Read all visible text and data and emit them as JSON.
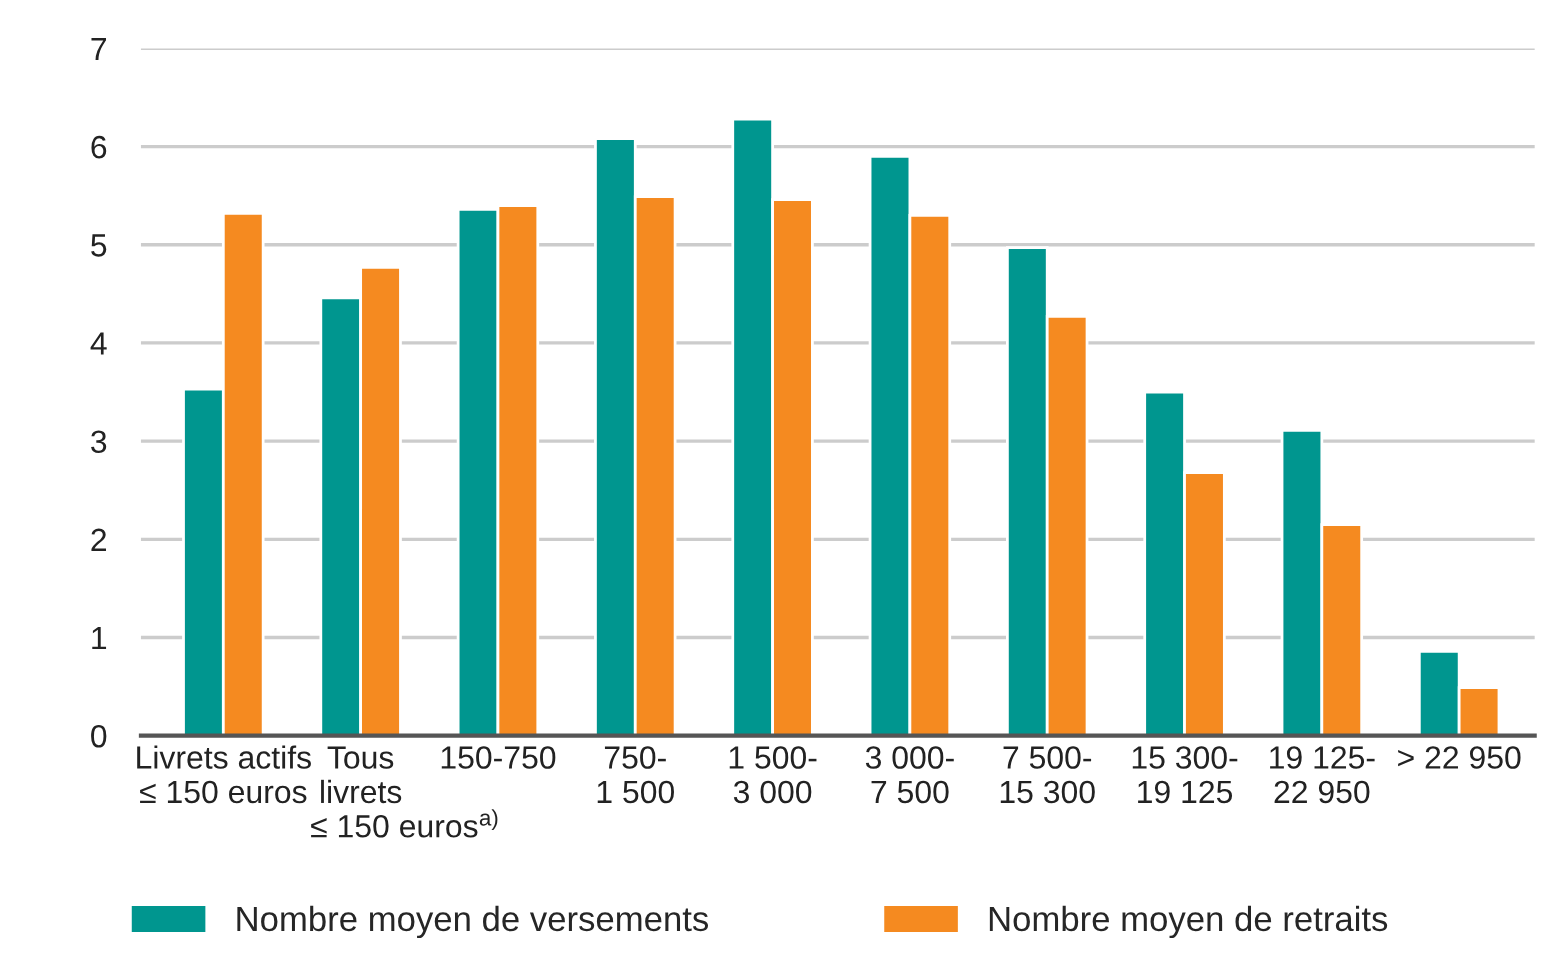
{
  "chart_data": {
    "type": "bar",
    "categories": [
      "Livrets actifs\n≤ 150 euros",
      "Tous\nlivrets\n          ≤ 150 euros$^{a)}$",
      "150-750",
      "750-\n1 500",
      "1 500-\n3 000",
      "3 000-\n7 500",
      "7 500-\n15 300",
      "15 300-\n19 125",
      "19 125-\n22 950",
      "> 22 950"
    ],
    "series": [
      {
        "name": "Nombre moyen de versements",
        "color": "#00968f",
        "values": [
          3.53,
          4.46,
          5.36,
          6.08,
          6.28,
          5.9,
          4.97,
          3.5,
          3.11,
          0.86
        ]
      },
      {
        "name": "Nombre moyen de retraits",
        "color": "#f58a20",
        "values": [
          5.32,
          4.77,
          5.4,
          5.49,
          5.46,
          5.3,
          4.27,
          2.68,
          2.15,
          0.49
        ]
      }
    ],
    "ylim": [
      0,
      7
    ],
    "yticks": [
      0,
      1,
      2,
      3,
      4,
      5,
      6,
      7
    ],
    "grid": "y",
    "legend": "bottom"
  }
}
